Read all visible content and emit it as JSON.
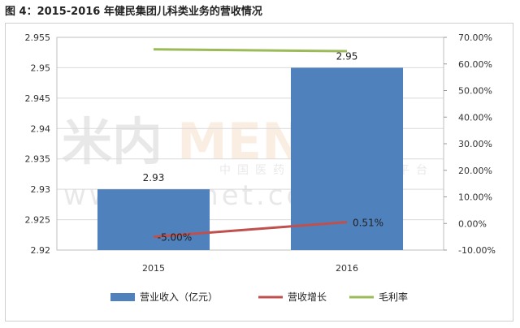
{
  "title": "图 4：2015-2016 年健民集团儿科类业务的营收情况",
  "watermark": {
    "logo_left": "米内",
    "logo_right": "MENET",
    "tagline": "中国医药健康信息第一平台",
    "url": "www.menet.com.cn"
  },
  "colors": {
    "bar": "#4f81bd",
    "growth": "#c0504d",
    "margin": "#9bbb59"
  },
  "chart_data": {
    "type": "bar",
    "categories": [
      "2015",
      "2016"
    ],
    "series": [
      {
        "name": "营业收入（亿元）",
        "type": "bar",
        "axis": "left",
        "values": [
          2.93,
          2.95
        ],
        "labels": [
          "2.93",
          "2.95"
        ]
      },
      {
        "name": "营收增长",
        "type": "line",
        "axis": "right",
        "values": [
          -5.0,
          0.51
        ],
        "labels": [
          "-5.00%",
          "0.51%"
        ]
      },
      {
        "name": "毛利率",
        "type": "line",
        "axis": "right",
        "values": [
          65.5,
          64.8
        ]
      }
    ],
    "left_axis": {
      "min": 2.92,
      "max": 2.955,
      "step": 0.005,
      "ticks": [
        "2.92",
        "2.925",
        "2.93",
        "2.935",
        "2.94",
        "2.945",
        "2.95",
        "2.955"
      ]
    },
    "right_axis": {
      "min": -10,
      "max": 70,
      "step": 10,
      "ticks": [
        "-10.00%",
        "0.00%",
        "10.00%",
        "20.00%",
        "30.00%",
        "40.00%",
        "50.00%",
        "60.00%",
        "70.00%"
      ]
    },
    "grid": true,
    "legend_position": "bottom"
  }
}
